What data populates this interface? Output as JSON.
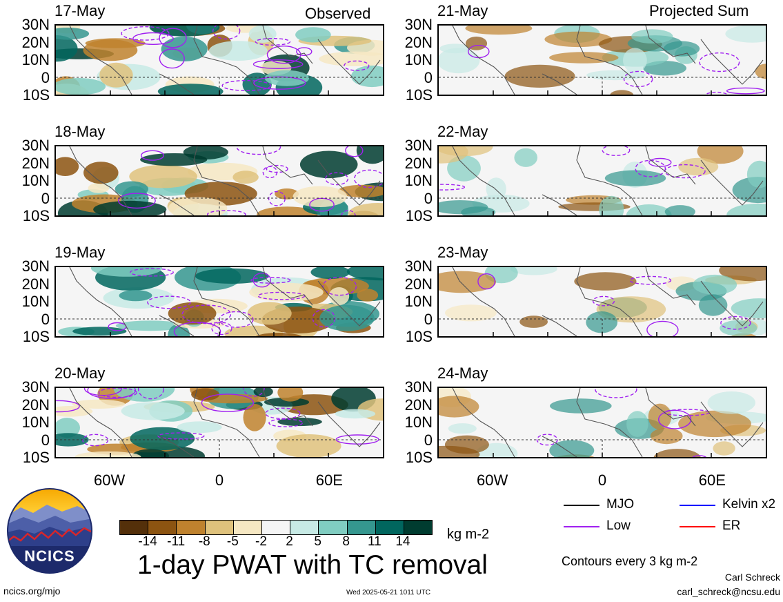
{
  "header": {
    "observed_label": "Observed",
    "projected_label": "Projected Sum"
  },
  "panels": {
    "observed": [
      {
        "date": "17-May"
      },
      {
        "date": "18-May"
      },
      {
        "date": "19-May"
      },
      {
        "date": "20-May"
      }
    ],
    "projected": [
      {
        "date": "21-May"
      },
      {
        "date": "22-May"
      },
      {
        "date": "23-May"
      },
      {
        "date": "24-May"
      }
    ]
  },
  "axes": {
    "lat_ticks": [
      "30N",
      "20N",
      "10N",
      "0",
      "10S"
    ],
    "lon_ticks": [
      "60W",
      "0",
      "60E"
    ],
    "lon_range": [
      "90W",
      "90E"
    ],
    "lat_range": [
      "10S",
      "30N"
    ]
  },
  "colorbar": {
    "labels": [
      "-14",
      "-11",
      "-8",
      "-5",
      "-2",
      "2",
      "5",
      "8",
      "11",
      "14"
    ],
    "colors": [
      "#54300a",
      "#8c5411",
      "#bf822e",
      "#dfc27c",
      "#f6e8c3",
      "#f5f5f5",
      "#c7eae5",
      "#80cdc1",
      "#35978f",
      "#01665e",
      "#003c30"
    ],
    "units": "kg m-2"
  },
  "legend": {
    "items": [
      {
        "label": "MJO",
        "color": "#000000"
      },
      {
        "label": "Kelvin x2",
        "color": "#0000ff"
      },
      {
        "label": "Low",
        "color": "#a020f0"
      },
      {
        "label": "ER",
        "color": "#ff0000"
      }
    ],
    "contour_note": "Contours every 3 kg m-2"
  },
  "footer": {
    "logo_text": "NCICS",
    "title": "1-day PWAT with TC removal",
    "url": "ncics.org/mjo",
    "timestamp": "Wed 2025-05-21 1011 UTC",
    "author": "Carl Schreck",
    "email": "carl_schreck@ncsu.edu"
  }
}
